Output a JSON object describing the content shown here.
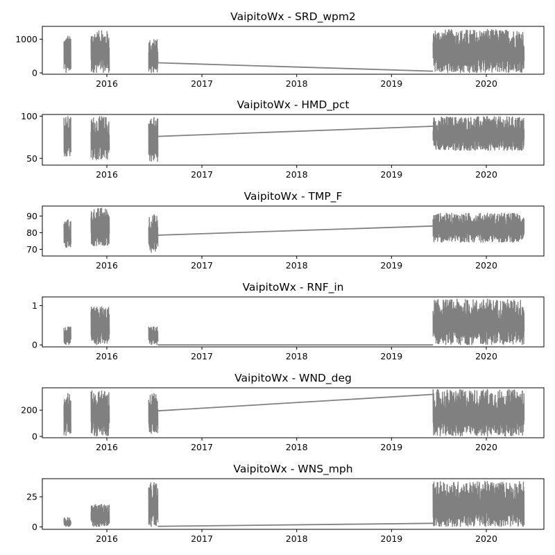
{
  "chart_data": [
    {
      "type": "line",
      "title": "VaipitoWx - SRD_wpm2",
      "xlabel": "",
      "ylabel": "",
      "x_ticks": [
        "2016",
        "2017",
        "2018",
        "2019",
        "2020"
      ],
      "y_ticks": [
        0,
        1000
      ],
      "ylim": [
        -40,
        1380
      ],
      "grid": false,
      "line_color": "#808080",
      "segments": [
        {
          "start": "2015-07-20",
          "end": "2015-08-15",
          "min": 0,
          "max": 1100
        },
        {
          "start": "2015-11-01",
          "end": "2016-01-10",
          "min": 0,
          "max": 1260
        },
        {
          "start": "2016-06-10",
          "end": "2016-07-15",
          "min": 0,
          "max": 1000
        },
        {
          "start": "2019-06-10",
          "end": "2020-05-25",
          "min": 0,
          "max": 1300
        }
      ],
      "gap_line": [
        [
          "2016-07-15",
          300
        ],
        [
          "2019-06-10",
          50
        ]
      ]
    },
    {
      "type": "line",
      "title": "VaipitoWx - HMD_pct",
      "xlabel": "",
      "ylabel": "",
      "x_ticks": [
        "2016",
        "2017",
        "2018",
        "2019",
        "2020"
      ],
      "y_ticks": [
        50,
        100
      ],
      "ylim": [
        42,
        102
      ],
      "grid": false,
      "line_color": "#808080",
      "segments": [
        {
          "start": "2015-07-20",
          "end": "2015-08-15",
          "min": 52,
          "max": 100
        },
        {
          "start": "2015-11-01",
          "end": "2016-01-10",
          "min": 48,
          "max": 100
        },
        {
          "start": "2016-06-10",
          "end": "2016-07-15",
          "min": 46,
          "max": 99
        },
        {
          "start": "2019-06-10",
          "end": "2020-05-25",
          "min": 59,
          "max": 100
        }
      ],
      "gap_line": [
        [
          "2016-07-15",
          76
        ],
        [
          "2019-06-10",
          88
        ]
      ]
    },
    {
      "type": "line",
      "title": "VaipitoWx - TMP_F",
      "xlabel": "",
      "ylabel": "",
      "x_ticks": [
        "2016",
        "2017",
        "2018",
        "2019",
        "2020"
      ],
      "y_ticks": [
        70,
        80,
        90
      ],
      "ylim": [
        66,
        96
      ],
      "grid": false,
      "line_color": "#808080",
      "segments": [
        {
          "start": "2015-07-20",
          "end": "2015-08-15",
          "min": 71,
          "max": 88
        },
        {
          "start": "2015-11-01",
          "end": "2016-01-10",
          "min": 72,
          "max": 95
        },
        {
          "start": "2016-06-10",
          "end": "2016-07-15",
          "min": 68,
          "max": 91
        },
        {
          "start": "2019-06-10",
          "end": "2020-05-25",
          "min": 74,
          "max": 92
        }
      ],
      "gap_line": [
        [
          "2016-07-15",
          78.5
        ],
        [
          "2019-06-10",
          84
        ]
      ]
    },
    {
      "type": "line",
      "title": "VaipitoWx - RNF_in",
      "xlabel": "",
      "ylabel": "",
      "x_ticks": [
        "2016",
        "2017",
        "2018",
        "2019",
        "2020"
      ],
      "y_ticks": [
        0,
        1
      ],
      "ylim": [
        -0.05,
        1.22
      ],
      "grid": false,
      "line_color": "#808080",
      "segments": [
        {
          "start": "2015-07-20",
          "end": "2015-08-15",
          "min": 0,
          "max": 0.47
        },
        {
          "start": "2015-11-01",
          "end": "2016-01-10",
          "min": 0,
          "max": 0.98
        },
        {
          "start": "2016-06-10",
          "end": "2016-07-15",
          "min": 0,
          "max": 0.47
        },
        {
          "start": "2019-06-10",
          "end": "2020-05-25",
          "min": 0,
          "max": 1.17
        }
      ],
      "gap_line": [
        [
          "2016-07-15",
          0
        ],
        [
          "2019-06-10",
          0
        ]
      ]
    },
    {
      "type": "line",
      "title": "VaipitoWx - WND_deg",
      "xlabel": "",
      "ylabel": "",
      "x_ticks": [
        "2016",
        "2017",
        "2018",
        "2019",
        "2020"
      ],
      "y_ticks": [
        0,
        200
      ],
      "ylim": [
        -10,
        370
      ],
      "grid": false,
      "line_color": "#808080",
      "segments": [
        {
          "start": "2015-07-20",
          "end": "2015-08-15",
          "min": 5,
          "max": 330
        },
        {
          "start": "2015-11-01",
          "end": "2016-01-10",
          "min": 0,
          "max": 350
        },
        {
          "start": "2016-06-10",
          "end": "2016-07-15",
          "min": 20,
          "max": 330
        },
        {
          "start": "2019-06-10",
          "end": "2020-05-25",
          "min": 0,
          "max": 360
        }
      ],
      "gap_line": [
        [
          "2016-07-15",
          195
        ],
        [
          "2019-06-10",
          320
        ]
      ]
    },
    {
      "type": "line",
      "title": "VaipitoWx - WNS_mph",
      "xlabel": "",
      "ylabel": "",
      "x_ticks": [
        "2016",
        "2017",
        "2018",
        "2019",
        "2020"
      ],
      "y_ticks": [
        0,
        25
      ],
      "ylim": [
        -2,
        40
      ],
      "grid": false,
      "line_color": "#808080",
      "segments": [
        {
          "start": "2015-07-20",
          "end": "2015-08-15",
          "min": 0,
          "max": 8
        },
        {
          "start": "2015-11-01",
          "end": "2016-01-10",
          "min": 0,
          "max": 19
        },
        {
          "start": "2016-06-10",
          "end": "2016-07-15",
          "min": 0,
          "max": 37
        },
        {
          "start": "2019-06-10",
          "end": "2020-05-25",
          "min": 0,
          "max": 38
        }
      ],
      "gap_line": [
        [
          "2016-07-15",
          0.5
        ],
        [
          "2019-06-10",
          3
        ]
      ]
    }
  ]
}
